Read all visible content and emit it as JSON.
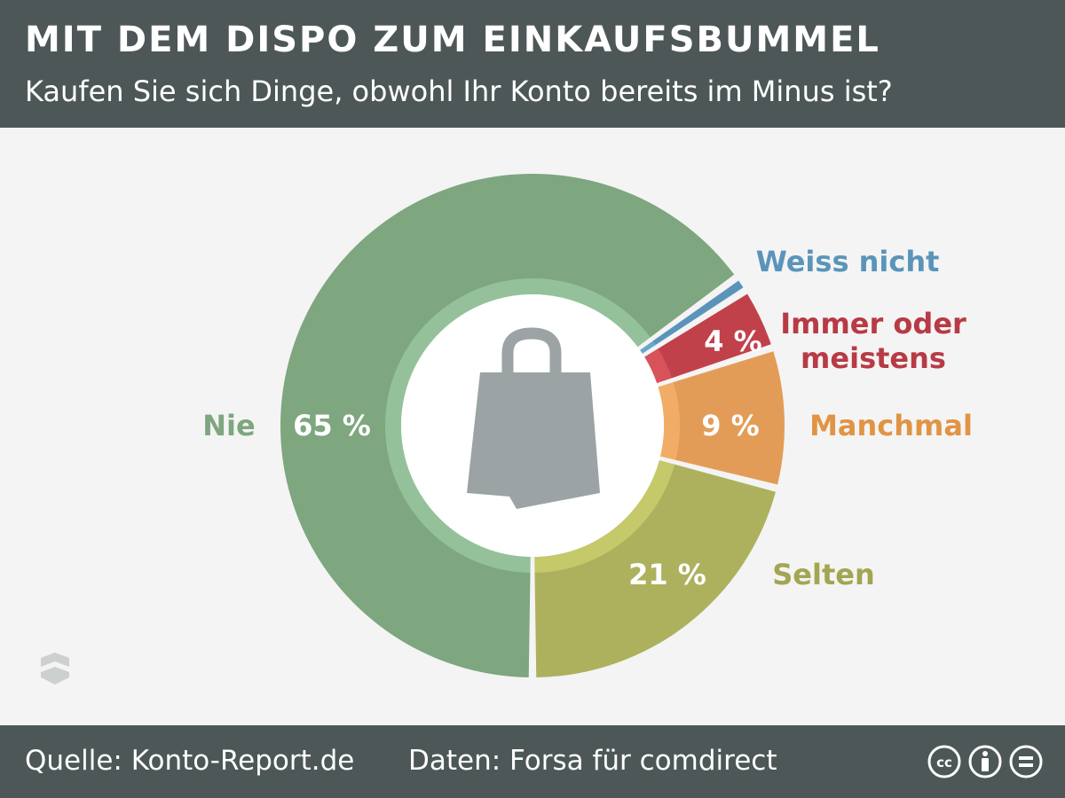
{
  "header": {
    "title": "MIT DEM DISPO ZUM EINKAUFSBUMMEL",
    "subtitle": "Kaufen Sie sich Dinge, obwohl Ihr Konto bereits im Minus ist?"
  },
  "footer": {
    "source": "Quelle: Konto-Report.de",
    "data_credit": "Daten: Forsa für comdirect",
    "license_icons": [
      "cc-icon",
      "attribution-icon",
      "no-derivatives-icon"
    ]
  },
  "chart_data": {
    "type": "pie",
    "donut": true,
    "center_icon": "shopping-bag-icon",
    "slices": [
      {
        "category": "Nie",
        "value": 65,
        "value_label": "65 %",
        "color": "#7ea67f",
        "inner_color": "#94c19a"
      },
      {
        "category": "Selten",
        "value": 21,
        "value_label": "21 %",
        "color": "#adb15e",
        "inner_color": "#c5c96a"
      },
      {
        "category": "Manchmal",
        "value": 9,
        "value_label": "9 %",
        "color": "#e39c57",
        "inner_color": "#f1ad68"
      },
      {
        "category": "Immer oder meistens",
        "value": 4,
        "value_label": "4 %",
        "color": "#c1414b",
        "inner_color": "#d8525a"
      },
      {
        "category": "Weiss nicht",
        "value": 1,
        "value_label": "",
        "color": "#5a94ba",
        "inner_color": "#6aa6cc"
      }
    ],
    "category_colors": {
      "Nie": "#7ea67f",
      "Selten": "#a3a552",
      "Manchmal": "#e09444",
      "Immer oder meistens": "#b83a44",
      "Weiss nicht": "#5a94ba"
    }
  }
}
